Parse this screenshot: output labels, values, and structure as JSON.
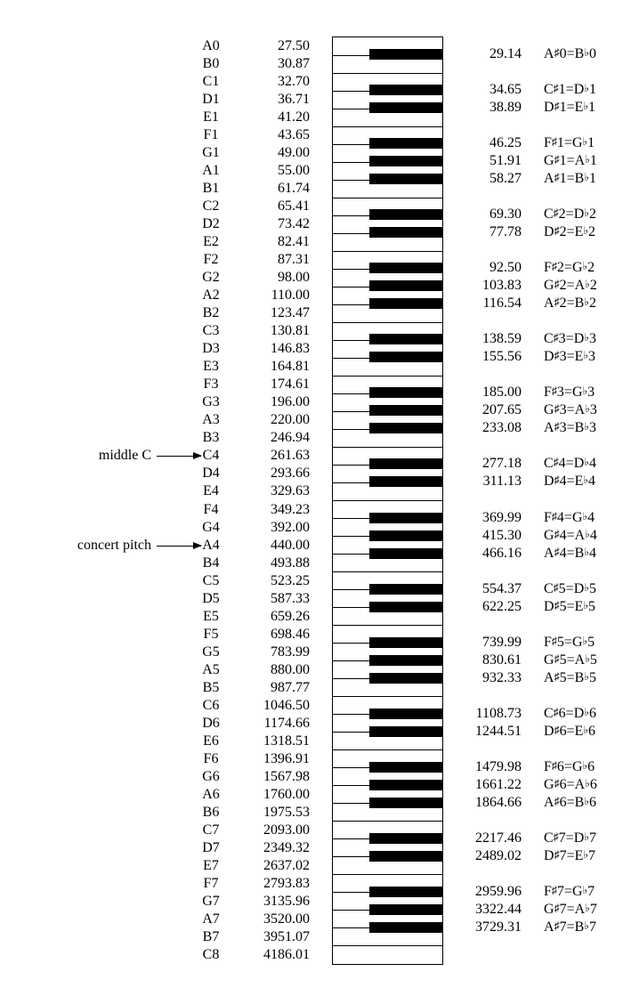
{
  "white_keys": [
    {
      "name": "A0",
      "freq": "27.50"
    },
    {
      "name": "B0",
      "freq": "30.87"
    },
    {
      "name": "C1",
      "freq": "32.70"
    },
    {
      "name": "D1",
      "freq": "36.71"
    },
    {
      "name": "E1",
      "freq": "41.20"
    },
    {
      "name": "F1",
      "freq": "43.65"
    },
    {
      "name": "G1",
      "freq": "49.00"
    },
    {
      "name": "A1",
      "freq": "55.00"
    },
    {
      "name": "B1",
      "freq": "61.74"
    },
    {
      "name": "C2",
      "freq": "65.41"
    },
    {
      "name": "D2",
      "freq": "73.42"
    },
    {
      "name": "E2",
      "freq": "82.41"
    },
    {
      "name": "F2",
      "freq": "87.31"
    },
    {
      "name": "G2",
      "freq": "98.00"
    },
    {
      "name": "A2",
      "freq": "110.00"
    },
    {
      "name": "B2",
      "freq": "123.47"
    },
    {
      "name": "C3",
      "freq": "130.81"
    },
    {
      "name": "D3",
      "freq": "146.83"
    },
    {
      "name": "E3",
      "freq": "164.81"
    },
    {
      "name": "F3",
      "freq": "174.61"
    },
    {
      "name": "G3",
      "freq": "196.00"
    },
    {
      "name": "A3",
      "freq": "220.00"
    },
    {
      "name": "B3",
      "freq": "246.94"
    },
    {
      "name": "C4",
      "freq": "261.63"
    },
    {
      "name": "D4",
      "freq": "293.66"
    },
    {
      "name": "E4",
      "freq": "329.63"
    },
    {
      "name": "F4",
      "freq": "349.23"
    },
    {
      "name": "G4",
      "freq": "392.00"
    },
    {
      "name": "A4",
      "freq": "440.00"
    },
    {
      "name": "B4",
      "freq": "493.88"
    },
    {
      "name": "C5",
      "freq": "523.25"
    },
    {
      "name": "D5",
      "freq": "587.33"
    },
    {
      "name": "E5",
      "freq": "659.26"
    },
    {
      "name": "F5",
      "freq": "698.46"
    },
    {
      "name": "G5",
      "freq": "783.99"
    },
    {
      "name": "A5",
      "freq": "880.00"
    },
    {
      "name": "B5",
      "freq": "987.77"
    },
    {
      "name": "C6",
      "freq": "1046.50"
    },
    {
      "name": "D6",
      "freq": "1174.66"
    },
    {
      "name": "E6",
      "freq": "1318.51"
    },
    {
      "name": "F6",
      "freq": "1396.91"
    },
    {
      "name": "G6",
      "freq": "1567.98"
    },
    {
      "name": "A6",
      "freq": "1760.00"
    },
    {
      "name": "B6",
      "freq": "1975.53"
    },
    {
      "name": "C7",
      "freq": "2093.00"
    },
    {
      "name": "D7",
      "freq": "2349.32"
    },
    {
      "name": "E7",
      "freq": "2637.02"
    },
    {
      "name": "F7",
      "freq": "2793.83"
    },
    {
      "name": "G7",
      "freq": "3135.96"
    },
    {
      "name": "A7",
      "freq": "3520.00"
    },
    {
      "name": "B7",
      "freq": "3951.07"
    },
    {
      "name": "C8",
      "freq": "4186.01"
    }
  ],
  "black_keys": [
    {
      "after": 0,
      "freq": "29.14",
      "sharp": "A",
      "flat": "B",
      "octave": "0"
    },
    {
      "after": 2,
      "freq": "34.65",
      "sharp": "C",
      "flat": "D",
      "octave": "1"
    },
    {
      "after": 3,
      "freq": "38.89",
      "sharp": "D",
      "flat": "E",
      "octave": "1"
    },
    {
      "after": 5,
      "freq": "46.25",
      "sharp": "F",
      "flat": "G",
      "octave": "1"
    },
    {
      "after": 6,
      "freq": "51.91",
      "sharp": "G",
      "flat": "A",
      "octave": "1"
    },
    {
      "after": 7,
      "freq": "58.27",
      "sharp": "A",
      "flat": "B",
      "octave": "1"
    },
    {
      "after": 9,
      "freq": "69.30",
      "sharp": "C",
      "flat": "D",
      "octave": "2"
    },
    {
      "after": 10,
      "freq": "77.78",
      "sharp": "D",
      "flat": "E",
      "octave": "2"
    },
    {
      "after": 12,
      "freq": "92.50",
      "sharp": "F",
      "flat": "G",
      "octave": "2"
    },
    {
      "after": 13,
      "freq": "103.83",
      "sharp": "G",
      "flat": "A",
      "octave": "2"
    },
    {
      "after": 14,
      "freq": "116.54",
      "sharp": "A",
      "flat": "B",
      "octave": "2"
    },
    {
      "after": 16,
      "freq": "138.59",
      "sharp": "C",
      "flat": "D",
      "octave": "3"
    },
    {
      "after": 17,
      "freq": "155.56",
      "sharp": "D",
      "flat": "E",
      "octave": "3"
    },
    {
      "after": 19,
      "freq": "185.00",
      "sharp": "F",
      "flat": "G",
      "octave": "3"
    },
    {
      "after": 20,
      "freq": "207.65",
      "sharp": "G",
      "flat": "A",
      "octave": "3"
    },
    {
      "after": 21,
      "freq": "233.08",
      "sharp": "A",
      "flat": "B",
      "octave": "3"
    },
    {
      "after": 23,
      "freq": "277.18",
      "sharp": "C",
      "flat": "D",
      "octave": "4"
    },
    {
      "after": 24,
      "freq": "311.13",
      "sharp": "D",
      "flat": "E",
      "octave": "4"
    },
    {
      "after": 26,
      "freq": "369.99",
      "sharp": "F",
      "flat": "G",
      "octave": "4"
    },
    {
      "after": 27,
      "freq": "415.30",
      "sharp": "G",
      "flat": "A",
      "octave": "4"
    },
    {
      "after": 28,
      "freq": "466.16",
      "sharp": "A",
      "flat": "B",
      "octave": "4"
    },
    {
      "after": 30,
      "freq": "554.37",
      "sharp": "C",
      "flat": "D",
      "octave": "5"
    },
    {
      "after": 31,
      "freq": "622.25",
      "sharp": "D",
      "flat": "E",
      "octave": "5"
    },
    {
      "after": 33,
      "freq": "739.99",
      "sharp": "F",
      "flat": "G",
      "octave": "5"
    },
    {
      "after": 34,
      "freq": "830.61",
      "sharp": "G",
      "flat": "A",
      "octave": "5"
    },
    {
      "after": 35,
      "freq": "932.33",
      "sharp": "A",
      "flat": "B",
      "octave": "5"
    },
    {
      "after": 37,
      "freq": "1108.73",
      "sharp": "C",
      "flat": "D",
      "octave": "6"
    },
    {
      "after": 38,
      "freq": "1244.51",
      "sharp": "D",
      "flat": "E",
      "octave": "6"
    },
    {
      "after": 40,
      "freq": "1479.98",
      "sharp": "F",
      "flat": "G",
      "octave": "6"
    },
    {
      "after": 41,
      "freq": "1661.22",
      "sharp": "G",
      "flat": "A",
      "octave": "6"
    },
    {
      "after": 42,
      "freq": "1864.66",
      "sharp": "A",
      "flat": "B",
      "octave": "6"
    },
    {
      "after": 44,
      "freq": "2217.46",
      "sharp": "C",
      "flat": "D",
      "octave": "7"
    },
    {
      "after": 45,
      "freq": "2489.02",
      "sharp": "D",
      "flat": "E",
      "octave": "7"
    },
    {
      "after": 47,
      "freq": "2959.96",
      "sharp": "F",
      "flat": "G",
      "octave": "7"
    },
    {
      "after": 48,
      "freq": "3322.44",
      "sharp": "G",
      "flat": "A",
      "octave": "7"
    },
    {
      "after": 49,
      "freq": "3729.31",
      "sharp": "A",
      "flat": "B",
      "octave": "7"
    }
  ],
  "symbols": {
    "sharp": "♯",
    "flat": "♭",
    "equals": "="
  },
  "annotations": [
    {
      "label": "middle C",
      "key_index": 23
    },
    {
      "label": "concert pitch",
      "key_index": 28
    }
  ]
}
